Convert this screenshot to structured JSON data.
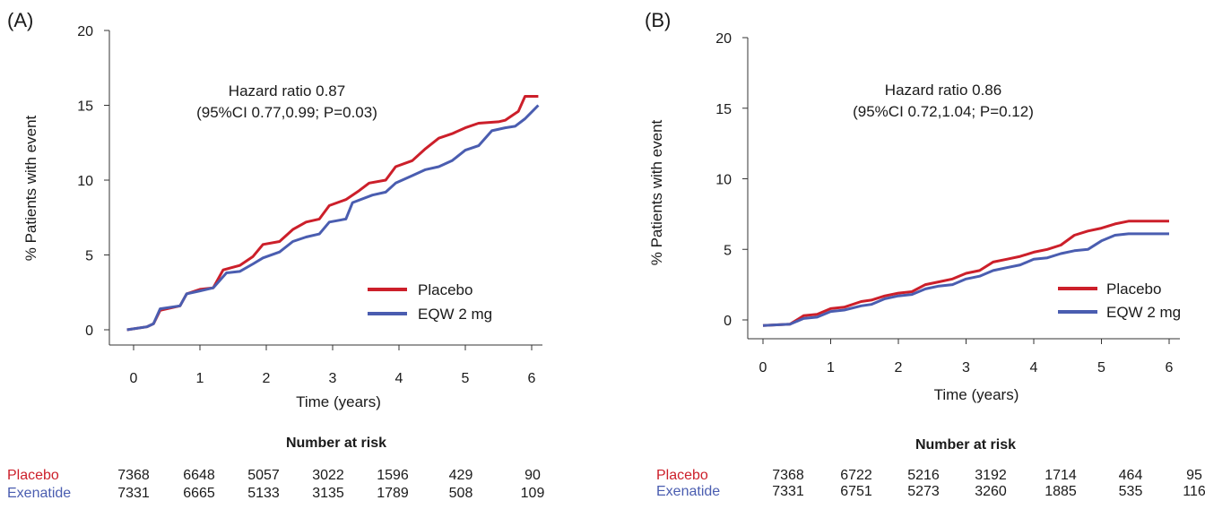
{
  "colors": {
    "placebo": "#cc1f2a",
    "eqw": "#4a5db0"
  },
  "risk_table": {
    "title": "Number at risk",
    "placebo_label": "Placebo",
    "exenatide_label": "Exenatide"
  },
  "chart_data": [
    {
      "panel_label": "(A)",
      "type": "line",
      "xlabel": "Time (years)",
      "ylabel": "% Patients with event",
      "xlim": [
        -0.15,
        6.2
      ],
      "ylim": [
        0,
        20
      ],
      "xticks": [
        0,
        1,
        2,
        3,
        4,
        5,
        6
      ],
      "yticks": [
        0,
        5,
        10,
        15,
        20
      ],
      "annotation": [
        "Hazard ratio 0.87",
        "(95%CI 0.77,0.99; P=0.03)"
      ],
      "legend_position": "bottom-right",
      "series": [
        {
          "name": "Placebo",
          "color_key": "placebo",
          "x": [
            -0.1,
            0.2,
            0.3,
            0.4,
            0.7,
            0.8,
            1.0,
            1.2,
            1.35,
            1.6,
            1.8,
            1.95,
            2.2,
            2.4,
            2.6,
            2.8,
            2.95,
            3.2,
            3.4,
            3.55,
            3.8,
            3.95,
            4.2,
            4.4,
            4.6,
            4.8,
            5.0,
            5.2,
            5.5,
            5.6,
            5.8,
            5.9,
            6.1
          ],
          "y": [
            0.0,
            0.2,
            0.4,
            1.3,
            1.6,
            2.4,
            2.7,
            2.8,
            4.0,
            4.3,
            4.9,
            5.7,
            5.9,
            6.7,
            7.2,
            7.4,
            8.3,
            8.7,
            9.3,
            9.8,
            10.0,
            10.9,
            11.3,
            12.1,
            12.8,
            13.1,
            13.5,
            13.8,
            13.9,
            14.0,
            14.6,
            15.6,
            15.6
          ]
        },
        {
          "name": "EQW 2 mg",
          "color_key": "eqw",
          "x": [
            -0.1,
            0.2,
            0.3,
            0.4,
            0.7,
            0.8,
            1.0,
            1.2,
            1.4,
            1.6,
            1.8,
            1.95,
            2.2,
            2.4,
            2.6,
            2.8,
            2.95,
            3.2,
            3.3,
            3.6,
            3.8,
            3.95,
            4.2,
            4.4,
            4.6,
            4.8,
            5.0,
            5.2,
            5.4,
            5.6,
            5.75,
            5.9,
            6.1
          ],
          "y": [
            0.0,
            0.2,
            0.4,
            1.4,
            1.6,
            2.4,
            2.6,
            2.8,
            3.8,
            3.9,
            4.4,
            4.8,
            5.2,
            5.9,
            6.2,
            6.4,
            7.2,
            7.4,
            8.5,
            9.0,
            9.2,
            9.8,
            10.3,
            10.7,
            10.9,
            11.3,
            12.0,
            12.3,
            13.3,
            13.5,
            13.6,
            14.1,
            15.0
          ]
        }
      ],
      "risk": {
        "placebo": [
          "7368",
          "6648",
          "5057",
          "3022",
          "1596",
          "429",
          "90"
        ],
        "exenatide": [
          "7331",
          "6665",
          "5133",
          "3135",
          "1789",
          "508",
          "109"
        ]
      }
    },
    {
      "panel_label": "(B)",
      "type": "line",
      "xlabel": "Time (years)",
      "ylabel": "% Patients with event",
      "xlim": [
        -0.4,
        6.2
      ],
      "ylim": [
        -1,
        20
      ],
      "xticks": [
        0,
        1,
        2,
        3,
        4,
        5,
        6
      ],
      "yticks": [
        0,
        5,
        10,
        15,
        20
      ],
      "annotation": [
        "Hazard ratio 0.86",
        "(95%CI 0.72,1.04; P=0.12)"
      ],
      "legend_position": "bottom-right",
      "series": [
        {
          "name": "Placebo",
          "color_key": "placebo",
          "x": [
            0.0,
            0.4,
            0.6,
            0.8,
            1.0,
            1.2,
            1.45,
            1.6,
            1.8,
            2.0,
            2.2,
            2.4,
            2.6,
            2.8,
            3.0,
            3.2,
            3.4,
            3.6,
            3.8,
            4.0,
            4.2,
            4.4,
            4.6,
            4.8,
            5.0,
            5.2,
            5.4,
            5.8,
            6.0
          ],
          "y": [
            -0.4,
            -0.3,
            0.3,
            0.4,
            0.8,
            0.9,
            1.3,
            1.4,
            1.7,
            1.9,
            2.0,
            2.5,
            2.7,
            2.9,
            3.3,
            3.5,
            4.1,
            4.3,
            4.5,
            4.8,
            5.0,
            5.3,
            6.0,
            6.3,
            6.5,
            6.8,
            7.0,
            7.0,
            7.0
          ]
        },
        {
          "name": "EQW 2 mg",
          "color_key": "eqw",
          "x": [
            0.0,
            0.4,
            0.6,
            0.8,
            1.0,
            1.2,
            1.45,
            1.6,
            1.8,
            2.0,
            2.2,
            2.4,
            2.6,
            2.8,
            3.0,
            3.2,
            3.4,
            3.6,
            3.8,
            4.0,
            4.2,
            4.4,
            4.6,
            4.8,
            5.0,
            5.2,
            5.4,
            5.8,
            6.0
          ],
          "y": [
            -0.4,
            -0.3,
            0.1,
            0.2,
            0.6,
            0.7,
            1.0,
            1.1,
            1.5,
            1.7,
            1.8,
            2.2,
            2.4,
            2.5,
            2.9,
            3.1,
            3.5,
            3.7,
            3.9,
            4.3,
            4.4,
            4.7,
            4.9,
            5.0,
            5.6,
            6.0,
            6.1,
            6.1,
            6.1
          ]
        }
      ],
      "risk": {
        "placebo": [
          "7368",
          "6722",
          "5216",
          "3192",
          "1714",
          "464",
          "95"
        ],
        "exenatide": [
          "7331",
          "6751",
          "5273",
          "3260",
          "1885",
          "535",
          "116"
        ]
      }
    }
  ]
}
